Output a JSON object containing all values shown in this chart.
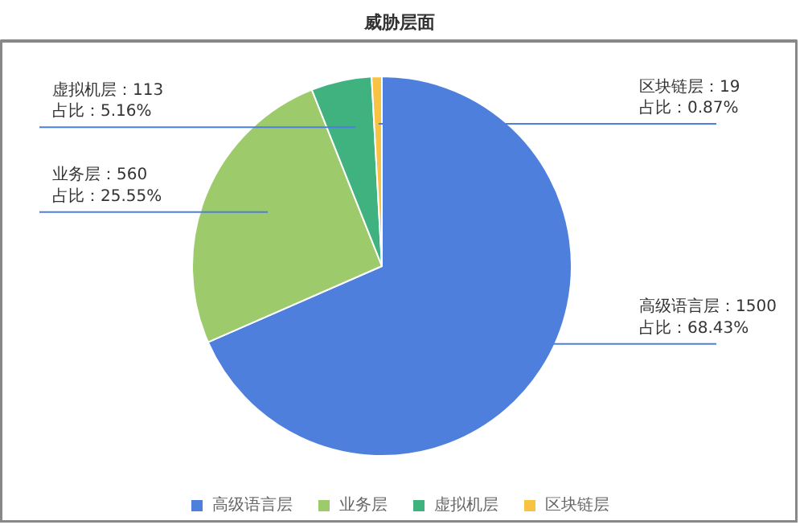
{
  "chart_data": {
    "type": "pie",
    "title": "威胁层面",
    "categories": [
      "高级语言层",
      "业务层",
      "虚拟机层",
      "区块链层"
    ],
    "values": [
      1500,
      560,
      113,
      19
    ],
    "colors": [
      "#4e7fdd",
      "#9dcb6b",
      "#3fb27f",
      "#f8c342"
    ],
    "value_labels": [
      "高级语言层：1500\n占比：68.43%",
      "业务层：560\n占比：25.55%",
      "虚拟机层：113\n占比：5.16%",
      "区块链层：19\n占比：0.87%"
    ],
    "legend": "bottom"
  }
}
